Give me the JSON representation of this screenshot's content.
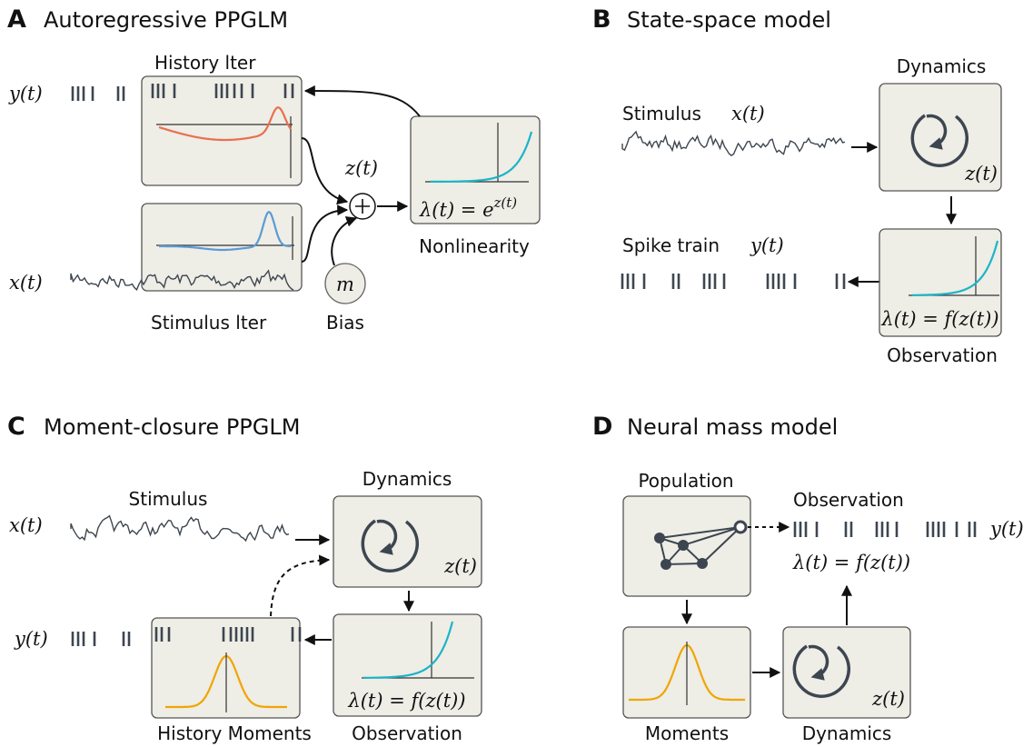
{
  "panel_a": {
    "letter": "A",
    "title": "Autoregressive PPGLM",
    "y_label": "y(t)",
    "x_label": "x(t)",
    "history_filter": "History  lter",
    "stimulus_filter": "Stimulus  lter",
    "bias": "Bias",
    "bias_symbol": "m",
    "sum_label": "z(t)",
    "formula": {
      "base": "λ(t) = e",
      "exponent": "z(t)"
    },
    "nonlinearity": "Nonlinearity"
  },
  "panel_b": {
    "letter": "B",
    "title": "State-space model",
    "dynamics": "Dynamics",
    "stimulus": "Stimulus",
    "x_label": "x(t)",
    "state_label": "z(t)",
    "spike_train": "Spike train",
    "y_label": "y(t)",
    "formula": "λ(t) = f(z(t))",
    "observation": "Observation"
  },
  "panel_c": {
    "letter": "C",
    "title": "Moment-closure PPGLM",
    "stimulus": "Stimulus",
    "x_label": "x(t)",
    "dynamics": "Dynamics",
    "state_label": "z(t)",
    "y_label": "y(t)",
    "formula": "λ(t) = f(z(t))",
    "history_moments": "History Moments",
    "observation": "Observation"
  },
  "panel_d": {
    "letter": "D",
    "title": "Neural mass model",
    "population": "Population",
    "observation": "Observation",
    "y_label": "y(t)",
    "formula": "λ(t) = f(z(t))",
    "moments": "Moments",
    "dynamics": "Dynamics",
    "state_label": "z(t)"
  }
}
